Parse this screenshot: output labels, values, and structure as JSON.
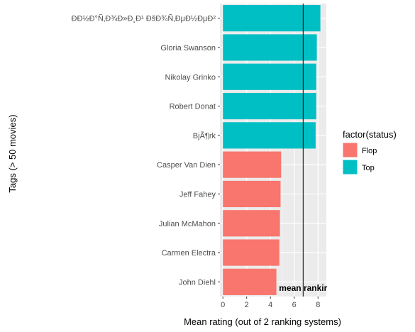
{
  "chart_data": {
    "type": "bar",
    "orientation": "horizontal",
    "xlabel": "Mean rating (out of 2 ranking systems)",
    "ylabel": "Tags (> 50 movies)",
    "xlim": [
      -0.25,
      8.7
    ],
    "x_ticks": [
      0,
      2,
      4,
      6,
      8
    ],
    "grid": true,
    "legend": {
      "title": "factor(status)",
      "placement": "right",
      "entries": [
        {
          "label": "Flop",
          "color": "#F8766D"
        },
        {
          "label": "Top",
          "color": "#00BFC4"
        }
      ]
    },
    "categories": [
      "ÐÐ½Ð°Ñ‚Ð¾Ð»Ð¸Ð¹ ÐšÐ¾Ñ‚ÐµÐ½ÐµÐ²",
      "Gloria Swanson",
      "Nikolay Grinko",
      "Robert Donat",
      "BjÃ¶rk",
      "Casper Van Dien",
      "Jeff Fahey",
      "Julian McMahon",
      "Carmen Electra",
      "John Diehl"
    ],
    "values": [
      8.2,
      7.9,
      7.85,
      7.85,
      7.8,
      4.9,
      4.85,
      4.8,
      4.75,
      4.5
    ],
    "status": [
      "Top",
      "Top",
      "Top",
      "Top",
      "Top",
      "Flop",
      "Flop",
      "Flop",
      "Flop",
      "Flop"
    ],
    "reference_line": {
      "value": 6.75,
      "label": "mean rankir"
    }
  }
}
